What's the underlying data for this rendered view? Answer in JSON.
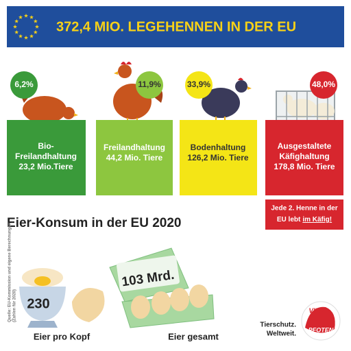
{
  "header": {
    "title": "372,4 MIO. LEGEHENNEN IN DER EU"
  },
  "categories": [
    {
      "percent": "6,2%",
      "lines": [
        "Bio-",
        "Freilandhaltung",
        "23,2 Mio.Tiere"
      ]
    },
    {
      "percent": "11,9%",
      "lines": [
        "Freilandhaltung",
        "44,2 Mio. Tiere"
      ]
    },
    {
      "percent": "33,9%",
      "lines": [
        "Bodenhaltung",
        "126,2 Mio. Tiere"
      ]
    },
    {
      "percent": "48,0%",
      "lines": [
        "Ausgestaltete",
        "Käfighaltung",
        "178,8 Mio. Tiere"
      ]
    }
  ],
  "note": {
    "line1": "Jede 2. Henne in der",
    "line2": "EU lebt",
    "emphasis": "im Käfig!"
  },
  "consumption": {
    "title": "Eier-Konsum in der EU 2020",
    "per_capita": {
      "value": "230",
      "label": "Eier pro Kopf"
    },
    "total": {
      "value": "103 Mrd.",
      "label": "Eier gesamt"
    }
  },
  "source": [
    "Quelle: EU-Kommission und eigene Berechnungen",
    "(Zahlen für 2020)"
  ],
  "logo": {
    "tagline": [
      "Tierschutz.",
      "Weltweit."
    ],
    "brand": [
      "VIER",
      "PFOTEN"
    ]
  }
}
